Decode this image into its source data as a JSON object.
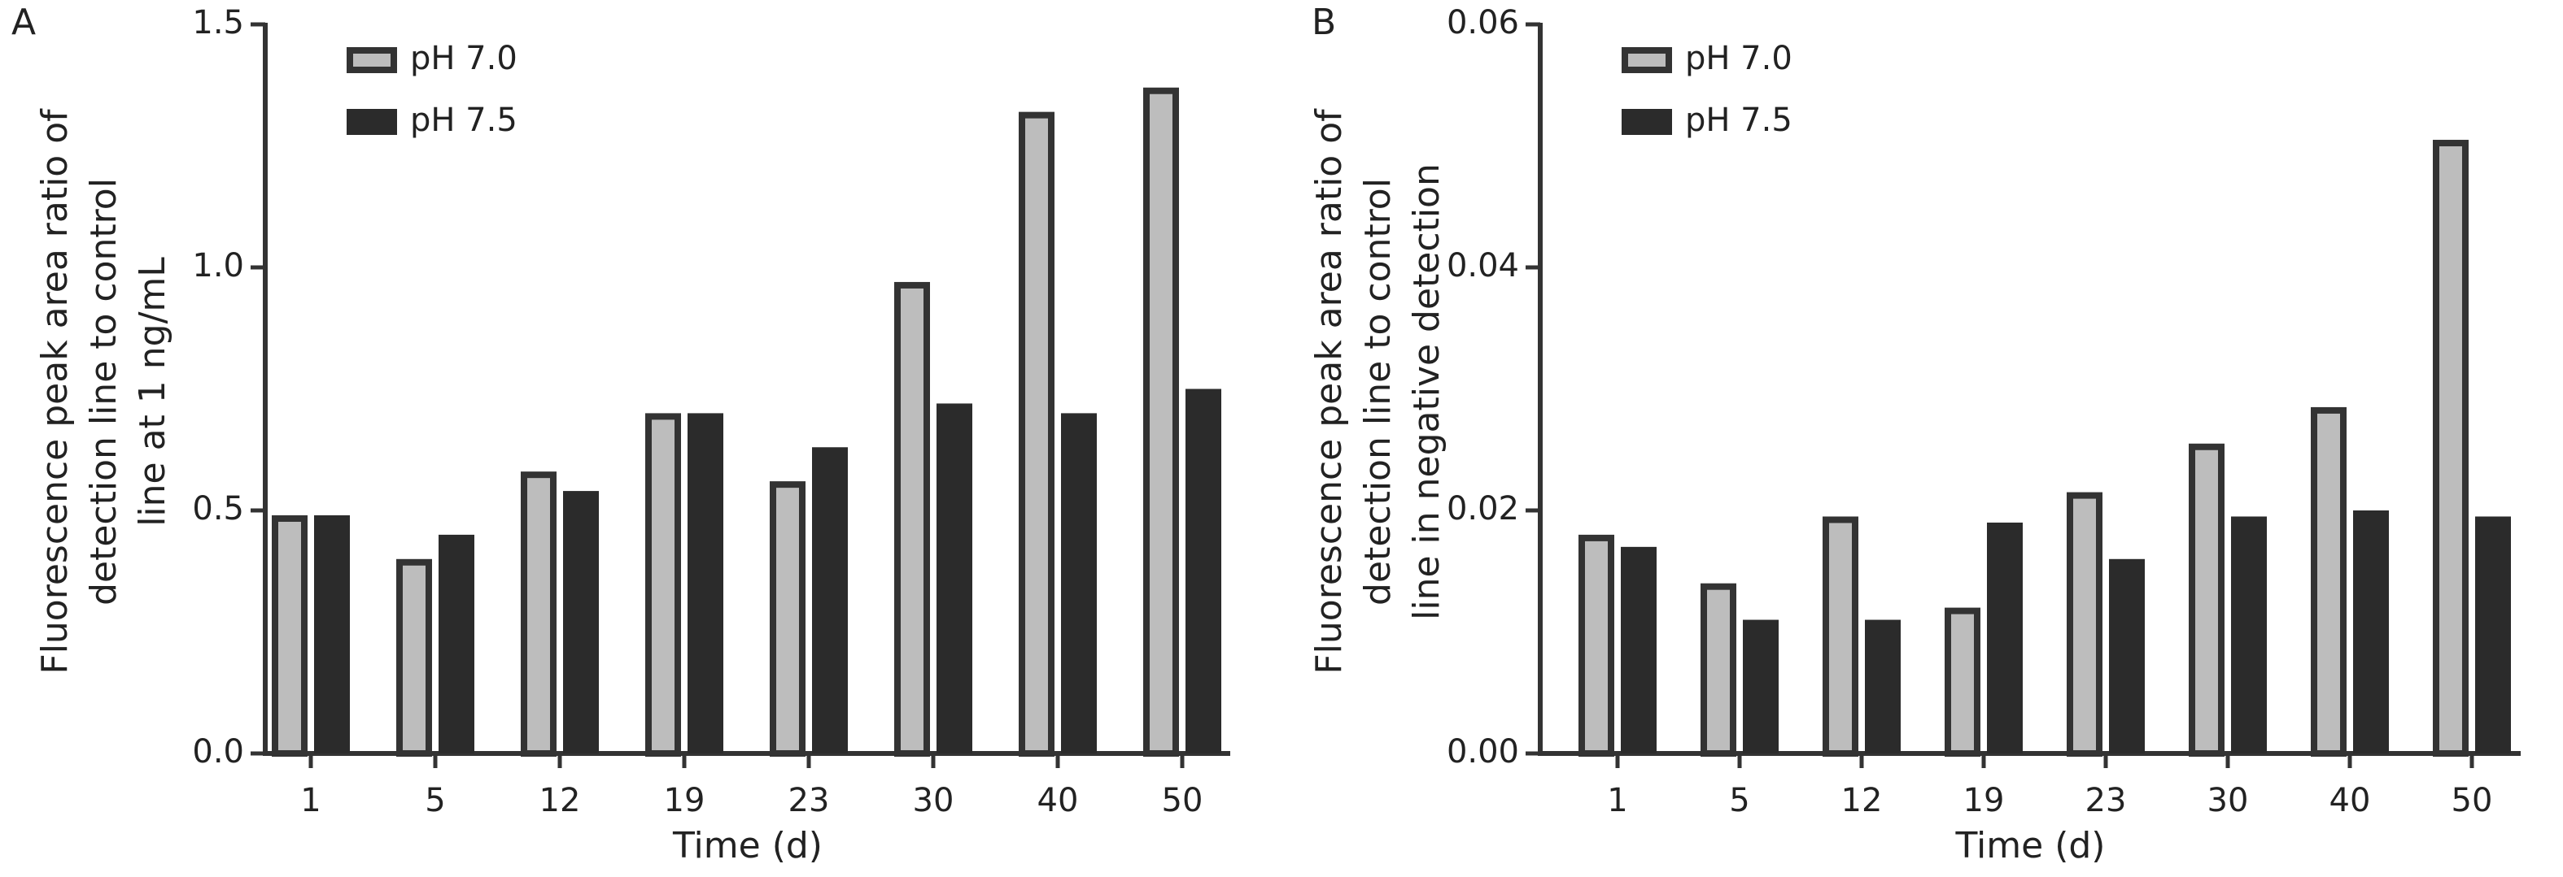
{
  "chart_data": [
    {
      "type": "bar",
      "panel_label": "A",
      "ylabel": [
        "Fluorescence peak area ratio of",
        "detection line to control",
        "line at 1 ng/mL"
      ],
      "xlabel": "Time (d)",
      "categories": [
        "1",
        "5",
        "12",
        "19",
        "23",
        "30",
        "40",
        "50"
      ],
      "series": [
        {
          "name": "pH 7.0",
          "color": "#bdbdbd",
          "values": [
            0.49,
            0.4,
            0.58,
            0.7,
            0.56,
            0.97,
            1.32,
            1.37
          ]
        },
        {
          "name": "pH 7.5",
          "color": "#2b2b2b",
          "values": [
            0.49,
            0.45,
            0.54,
            0.7,
            0.63,
            0.72,
            0.7,
            0.75
          ]
        }
      ],
      "ylim": [
        0,
        1.5
      ],
      "yticks": [
        {
          "value": 0,
          "label": "0.0"
        },
        0.5,
        {
          "value": 1,
          "label": "1.0"
        },
        1.5
      ]
    },
    {
      "type": "bar",
      "panel_label": "B",
      "ylabel": [
        "Fluorescence peak area ratio of",
        "detection line to control",
        "line in negative detection"
      ],
      "xlabel": "Time (d)",
      "categories": [
        "1",
        "5",
        "12",
        "19",
        "23",
        "30",
        "40",
        "50"
      ],
      "series": [
        {
          "name": "pH 7.0",
          "color": "#bdbdbd",
          "values": [
            0.018,
            0.014,
            0.0195,
            0.012,
            0.0215,
            0.0255,
            0.0285,
            0.0505
          ]
        },
        {
          "name": "pH 7.5",
          "color": "#2b2b2b",
          "values": [
            0.017,
            0.011,
            0.011,
            0.019,
            0.016,
            0.0195,
            0.02,
            0.0195
          ]
        }
      ],
      "ylim": [
        0,
        0.06
      ],
      "yticks": [
        {
          "value": 0,
          "label": "0.00"
        },
        {
          "value": 0.02,
          "label": "0.02"
        },
        {
          "value": 0.04,
          "label": "0.04"
        },
        {
          "value": 0.06,
          "label": "0.06"
        }
      ]
    }
  ]
}
